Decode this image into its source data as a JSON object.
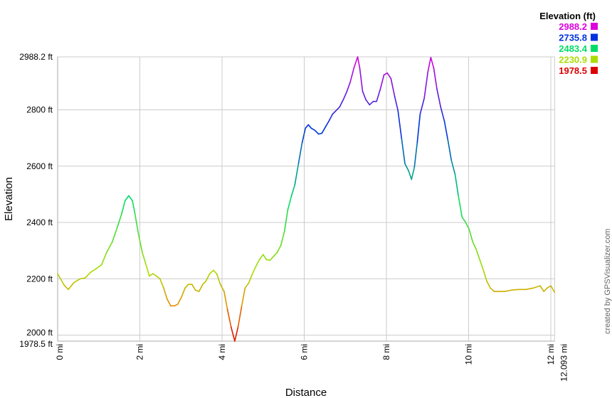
{
  "chart_data": {
    "type": "line",
    "xlabel": "Distance",
    "ylabel": "Elevation",
    "xlim": [
      0,
      12.093
    ],
    "ylim": [
      1978.5,
      2988.2
    ],
    "grid": true,
    "x_ticks": [
      0,
      2,
      4,
      6,
      8,
      10,
      12,
      12.093
    ],
    "x_tick_labels": [
      "0 mi",
      "2 mi",
      "4 mi",
      "6 mi",
      "8 mi",
      "10 mi",
      "12 mi",
      "12.093 mi"
    ],
    "y_ticks": [
      1978.5,
      2000,
      2200,
      2400,
      2600,
      2800,
      2988.2
    ],
    "y_tick_labels": [
      "1978.5 ft",
      "2000 ft",
      "2200 ft",
      "2400 ft",
      "2600 ft",
      "2800 ft",
      "2988.2 ft"
    ],
    "color_by": "elevation",
    "legend": {
      "title": "Elevation (ft)",
      "position": "top-right",
      "entries": [
        {
          "label": "2988.2",
          "color": "#dd00dd"
        },
        {
          "label": "2735.8",
          "color": "#0033dd"
        },
        {
          "label": "2483.4",
          "color": "#00dd66"
        },
        {
          "label": "2230.9",
          "color": "#aadd00"
        },
        {
          "label": "1978.5",
          "color": "#dd0000"
        }
      ]
    },
    "x": [
      0,
      0.16,
      0.26,
      0.4,
      0.55,
      0.67,
      0.8,
      0.93,
      1.07,
      1.19,
      1.33,
      1.45,
      1.56,
      1.64,
      1.73,
      1.82,
      1.88,
      1.97,
      2.06,
      2.14,
      2.23,
      2.32,
      2.4,
      2.49,
      2.58,
      2.66,
      2.75,
      2.84,
      2.92,
      3.01,
      3.1,
      3.18,
      3.27,
      3.35,
      3.44,
      3.53,
      3.61,
      3.7,
      3.79,
      3.87,
      3.96,
      4.05,
      4.13,
      4.22,
      4.31,
      4.39,
      4.48,
      4.56,
      4.65,
      4.74,
      4.82,
      4.91,
      5.0,
      5.08,
      5.17,
      5.26,
      5.34,
      5.43,
      5.52,
      5.6,
      5.69,
      5.77,
      5.86,
      5.95,
      6.03,
      6.1,
      6.17,
      6.26,
      6.35,
      6.43,
      6.52,
      6.6,
      6.69,
      6.78,
      6.86,
      6.95,
      7.04,
      7.12,
      7.21,
      7.3,
      7.35,
      7.42,
      7.5,
      7.59,
      7.68,
      7.76,
      7.85,
      7.94,
      8.02,
      8.11,
      8.2,
      8.28,
      8.37,
      8.45,
      8.54,
      8.61,
      8.68,
      8.75,
      8.82,
      8.92,
      9.01,
      9.08,
      9.15,
      9.23,
      9.32,
      9.41,
      9.49,
      9.58,
      9.67,
      9.75,
      9.84,
      9.92,
      10.01,
      10.1,
      10.18,
      10.27,
      10.36,
      10.44,
      10.53,
      10.62,
      10.7,
      10.88,
      11.05,
      11.22,
      11.39,
      11.57,
      11.74,
      11.83,
      11.91,
      12.0,
      12.093
    ],
    "y": [
      2218,
      2177,
      2162,
      2187,
      2200,
      2203,
      2223,
      2235,
      2250,
      2293,
      2331,
      2382,
      2432,
      2477,
      2495,
      2477,
      2432,
      2356,
      2293,
      2255,
      2210,
      2218,
      2210,
      2200,
      2167,
      2129,
      2104,
      2104,
      2109,
      2134,
      2167,
      2180,
      2180,
      2160,
      2155,
      2180,
      2192,
      2218,
      2230,
      2218,
      2180,
      2155,
      2092,
      2029,
      1978.5,
      2029,
      2104,
      2167,
      2185,
      2218,
      2243,
      2268,
      2286,
      2268,
      2266,
      2281,
      2293,
      2318,
      2369,
      2445,
      2495,
      2533,
      2609,
      2684,
      2735,
      2747,
      2735,
      2727,
      2714,
      2717,
      2740,
      2760,
      2785,
      2798,
      2810,
      2836,
      2866,
      2899,
      2949,
      2988.2,
      2949,
      2866,
      2836,
      2818,
      2830,
      2830,
      2873,
      2924,
      2931,
      2911,
      2848,
      2798,
      2697,
      2609,
      2583,
      2553,
      2596,
      2684,
      2785,
      2841,
      2936,
      2986,
      2949,
      2873,
      2810,
      2760,
      2697,
      2621,
      2571,
      2495,
      2419,
      2402,
      2377,
      2331,
      2306,
      2268,
      2230,
      2192,
      2167,
      2155,
      2155,
      2155,
      2160,
      2162,
      2162,
      2167,
      2175,
      2155,
      2167,
      2175,
      2152
    ]
  },
  "credit": "created by GPSVisualizer.com"
}
